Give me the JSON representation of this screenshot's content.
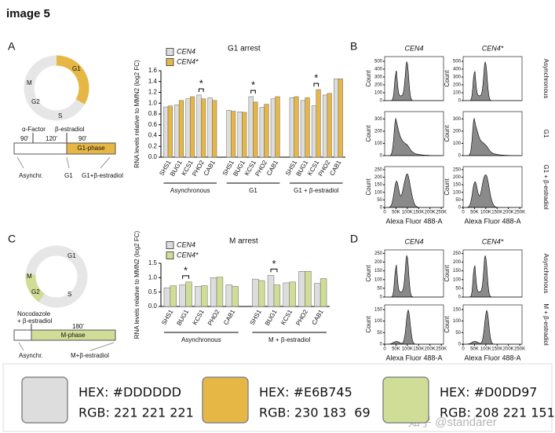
{
  "header": {
    "title": "image 5"
  },
  "panel_a": {
    "label": "A",
    "schematic": {
      "phases": [
        "G1",
        "M",
        "G2",
        "S"
      ],
      "treatments": [
        "α-Factor",
        "β-estradiol"
      ],
      "durations": [
        "90'",
        "120'",
        "90'"
      ],
      "box_label": "G1-phase",
      "samples": [
        "Asynchr.",
        "G1",
        "G1+β-estradiol"
      ]
    },
    "chart": {
      "type": "bar",
      "title": "G1 arrest",
      "y_label": "RNA levels relative to MMN2 (log2 FC)",
      "groups": [
        {
          "label": "Asynchronous",
          "categories": [
            "SHS1",
            "BUG1",
            "KCS1",
            "PHO2",
            "CAB1"
          ]
        },
        {
          "label": "G1",
          "categories": [
            "SHS1",
            "BUG1",
            "KCS1",
            "PHO2",
            "CAB1"
          ]
        },
        {
          "label": "G1 + β-estradiol",
          "categories": [
            "SHS1",
            "BUG1",
            "KCS1",
            "PHO2",
            "CAB1"
          ]
        }
      ],
      "series": [
        {
          "name": "CEN4",
          "color": "#DDDDDD",
          "values": [
            0.93,
            0.97,
            1.08,
            1.15,
            1.1,
            0.87,
            0.84,
            1.12,
            0.92,
            1.08,
            1.1,
            1.05,
            0.95,
            1.15,
            1.45
          ]
        },
        {
          "name": "CEN4*",
          "color": "#E6B745",
          "values": [
            0.95,
            1.05,
            1.12,
            1.08,
            1.05,
            0.85,
            0.83,
            1.02,
            0.98,
            1.12,
            1.12,
            1.1,
            1.25,
            1.18,
            1.45
          ]
        }
      ],
      "ylim": [
        0,
        1.6
      ],
      "yticks": [
        {
          "value": 0,
          "label": "0.0"
        },
        0.2,
        0.4,
        0.6,
        0.8,
        {
          "value": 1,
          "label": "1.0"
        },
        1.2,
        1.4,
        1.6
      ],
      "annotations": [
        "*",
        "*",
        "*"
      ]
    }
  },
  "panel_b": {
    "label": "B",
    "columns": [
      "CEN4",
      "CEN4*"
    ],
    "x_label": "Alexa Fluor 488-A",
    "y_label": "Count",
    "xlim": [
      0,
      260000
    ],
    "xticks": [
      0,
      {
        "value": 50000,
        "label": "50K"
      },
      {
        "value": 100000,
        "label": "100K"
      },
      {
        "value": 150000,
        "label": "150K"
      },
      {
        "value": 200000,
        "label": "200K"
      },
      {
        "value": 250000,
        "label": "250K"
      }
    ],
    "rows": [
      {
        "label": "Asynchronous",
        "ylim": [
          0,
          560
        ],
        "yticks": [
          0,
          100,
          200,
          300,
          400,
          500
        ]
      },
      {
        "label": "G1",
        "ylim": [
          0,
          360
        ],
        "yticks": [
          0,
          100,
          200,
          300
        ]
      },
      {
        "label": "G1 + β-estradiol",
        "ylim": [
          0,
          270
        ],
        "yticks": [
          0,
          50,
          100,
          150,
          200,
          250
        ]
      }
    ]
  },
  "panel_c": {
    "label": "C",
    "schematic": {
      "phases": [
        "G1",
        "M",
        "G2",
        "S"
      ],
      "treatments": [
        "Nocodazole",
        "+ β-estradiol"
      ],
      "durations": [
        "180'"
      ],
      "box_label": "M-phase",
      "samples": [
        "Asynchr.",
        "M+β-estradiol"
      ]
    },
    "chart": {
      "type": "bar",
      "title": "M arrest",
      "y_label": "RNA levels relative to MMN2 (log2 FC)",
      "groups": [
        {
          "label": "Asynchronous",
          "categories": [
            "SHS1",
            "BUG1",
            "KCS1",
            "PHO2",
            "CAB1"
          ]
        },
        {
          "label": "M + β-estradiol",
          "categories": [
            "SHS1",
            "BUG1",
            "KCS1",
            "PHO2",
            "CAB1"
          ]
        }
      ],
      "series": [
        {
          "name": "CEN4",
          "color": "#DDDDDD",
          "values": [
            0.65,
            0.75,
            0.7,
            1.0,
            0.75,
            0.95,
            1.08,
            0.82,
            1.22,
            0.8
          ]
        },
        {
          "name": "CEN4*",
          "color": "#D0DD97",
          "values": [
            0.72,
            0.85,
            0.72,
            1.02,
            0.7,
            0.9,
            0.75,
            0.85,
            1.22,
            0.97
          ]
        }
      ],
      "ylim": [
        0,
        1.5
      ],
      "yticks": [
        {
          "value": 0,
          "label": "0.0"
        },
        0.5,
        {
          "value": 1,
          "label": "1.0"
        },
        1.5
      ],
      "annotations": [
        "*",
        "*"
      ]
    }
  },
  "panel_d": {
    "label": "D",
    "columns": [
      "CEN4",
      "CEN4*"
    ],
    "x_label": "Alexa Fluor 488-A",
    "y_label": "Count",
    "xlim": [
      0,
      260000
    ],
    "xticks": [
      0,
      {
        "value": 50000,
        "label": "50K"
      },
      {
        "value": 100000,
        "label": "100K"
      },
      {
        "value": 150000,
        "label": "150K"
      },
      {
        "value": 200000,
        "label": "200K"
      },
      {
        "value": 250000,
        "label": "250K"
      }
    ],
    "rows": [
      {
        "label": "Asynchronous",
        "ylim": [
          0,
          270
        ],
        "yticks": [
          0,
          50,
          100,
          150,
          200,
          250
        ]
      },
      {
        "label": "M + β-estradiol",
        "ylim": [
          0,
          170
        ],
        "yticks": [
          0,
          50,
          100,
          150
        ]
      }
    ]
  },
  "swatches": [
    {
      "hex": "HEX: #DDDDDD",
      "rgb": "RGB: 221 221 221",
      "color": "#DDDDDD"
    },
    {
      "hex": "HEX: #E6B745",
      "rgb": "RGB: 230 183  69",
      "color": "#E6B745"
    },
    {
      "hex": "HEX: #D0DD97",
      "rgb": "RGB: 208 221 151",
      "color": "#D0DD97"
    }
  ],
  "watermark": "知乎 @standarer"
}
